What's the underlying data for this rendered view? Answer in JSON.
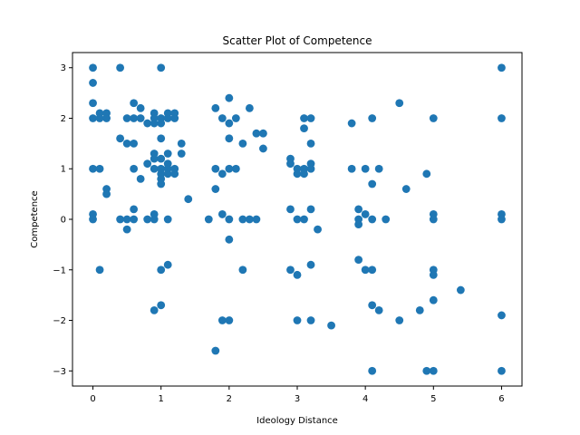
{
  "chart_data": {
    "type": "scatter",
    "title": "Scatter Plot of Competence",
    "xlabel": "Ideology Distance",
    "ylabel": "Competence",
    "xlim": [
      -0.3,
      6.3
    ],
    "ylim": [
      -3.3,
      3.3
    ],
    "xticks": [
      0,
      1,
      2,
      3,
      4,
      5,
      6
    ],
    "yticks": [
      -3,
      -2,
      -1,
      0,
      1,
      2,
      3
    ],
    "grid": false,
    "point_color": "#1f77b4",
    "points": [
      [
        0,
        3
      ],
      [
        0,
        2.7
      ],
      [
        0,
        2.3
      ],
      [
        0,
        2.0
      ],
      [
        0,
        1.0
      ],
      [
        0,
        0.1
      ],
      [
        0,
        0
      ],
      [
        0.1,
        2.1
      ],
      [
        0.1,
        2.0
      ],
      [
        0.1,
        1.0
      ],
      [
        0.1,
        -1.0
      ],
      [
        0.2,
        2.1
      ],
      [
        0.2,
        2.0
      ],
      [
        0.2,
        0.6
      ],
      [
        0.2,
        0.5
      ],
      [
        0.4,
        3
      ],
      [
        0.4,
        1.6
      ],
      [
        0.4,
        0
      ],
      [
        0.5,
        2.0
      ],
      [
        0.5,
        1.5
      ],
      [
        0.5,
        0
      ],
      [
        0.5,
        -0.2
      ],
      [
        0.6,
        2.3
      ],
      [
        0.6,
        2.0
      ],
      [
        0.6,
        1.5
      ],
      [
        0.6,
        1.0
      ],
      [
        0.6,
        0.2
      ],
      [
        0.6,
        0
      ],
      [
        0.7,
        2.2
      ],
      [
        0.7,
        2.0
      ],
      [
        0.7,
        0.8
      ],
      [
        0.8,
        1.9
      ],
      [
        0.8,
        1.1
      ],
      [
        0.8,
        0
      ],
      [
        0.9,
        2.1
      ],
      [
        0.9,
        2.0
      ],
      [
        0.9,
        1.9
      ],
      [
        0.9,
        1.3
      ],
      [
        0.9,
        1.2
      ],
      [
        0.9,
        1.0
      ],
      [
        0.9,
        0.1
      ],
      [
        0.9,
        0
      ],
      [
        0.9,
        -1.8
      ],
      [
        1.0,
        3
      ],
      [
        1.0,
        2.0
      ],
      [
        1.0,
        1.9
      ],
      [
        1.0,
        1.6
      ],
      [
        1.0,
        1.2
      ],
      [
        1.0,
        1.0
      ],
      [
        1.0,
        0.9
      ],
      [
        1.0,
        0.8
      ],
      [
        1.0,
        0.7
      ],
      [
        1.0,
        -1.0
      ],
      [
        1.0,
        -1.7
      ],
      [
        1.1,
        2.1
      ],
      [
        1.1,
        2.0
      ],
      [
        1.1,
        1.3
      ],
      [
        1.1,
        1.1
      ],
      [
        1.1,
        1.0
      ],
      [
        1.1,
        0.9
      ],
      [
        1.1,
        0
      ],
      [
        1.1,
        -0.9
      ],
      [
        1.2,
        2.1
      ],
      [
        1.2,
        2.0
      ],
      [
        1.2,
        1.0
      ],
      [
        1.2,
        0.9
      ],
      [
        1.3,
        1.5
      ],
      [
        1.3,
        1.3
      ],
      [
        1.4,
        0.4
      ],
      [
        1.7,
        0
      ],
      [
        1.8,
        2.2
      ],
      [
        1.8,
        1.0
      ],
      [
        1.8,
        0.6
      ],
      [
        1.8,
        -2.6
      ],
      [
        1.9,
        2.0
      ],
      [
        1.9,
        0.9
      ],
      [
        1.9,
        0.1
      ],
      [
        1.9,
        -2.0
      ],
      [
        2.0,
        2.4
      ],
      [
        2.0,
        1.9
      ],
      [
        2.0,
        1.6
      ],
      [
        2.0,
        1.0
      ],
      [
        2.0,
        0
      ],
      [
        2.0,
        -0.4
      ],
      [
        2.0,
        -2.0
      ],
      [
        2.1,
        2.0
      ],
      [
        2.1,
        1.0
      ],
      [
        2.2,
        1.5
      ],
      [
        2.2,
        0
      ],
      [
        2.2,
        -1.0
      ],
      [
        2.3,
        2.2
      ],
      [
        2.3,
        0
      ],
      [
        2.4,
        1.7
      ],
      [
        2.4,
        0
      ],
      [
        2.5,
        1.7
      ],
      [
        2.5,
        1.4
      ],
      [
        2.9,
        1.2
      ],
      [
        2.9,
        1.1
      ],
      [
        2.9,
        0.2
      ],
      [
        2.9,
        -1.0
      ],
      [
        3.0,
        1.0
      ],
      [
        3.0,
        0.9
      ],
      [
        3.0,
        0
      ],
      [
        3.0,
        -1.1
      ],
      [
        3.0,
        -2.0
      ],
      [
        3.1,
        2.0
      ],
      [
        3.1,
        1.8
      ],
      [
        3.1,
        1.0
      ],
      [
        3.1,
        0.9
      ],
      [
        3.1,
        0
      ],
      [
        3.2,
        2.0
      ],
      [
        3.2,
        1.5
      ],
      [
        3.2,
        1.1
      ],
      [
        3.2,
        1.0
      ],
      [
        3.2,
        0.2
      ],
      [
        3.2,
        -0.9
      ],
      [
        3.2,
        -2.0
      ],
      [
        3.3,
        -0.2
      ],
      [
        3.5,
        -2.1
      ],
      [
        3.8,
        1.9
      ],
      [
        3.8,
        1.0
      ],
      [
        3.9,
        0.2
      ],
      [
        3.9,
        0
      ],
      [
        3.9,
        -0.1
      ],
      [
        3.9,
        -0.8
      ],
      [
        4.0,
        1.0
      ],
      [
        4.0,
        0.1
      ],
      [
        4.0,
        -1.0
      ],
      [
        4.1,
        2.0
      ],
      [
        4.1,
        0.7
      ],
      [
        4.1,
        0
      ],
      [
        4.1,
        -1.0
      ],
      [
        4.1,
        -1.7
      ],
      [
        4.1,
        -3.0
      ],
      [
        4.2,
        1.0
      ],
      [
        4.2,
        -1.8
      ],
      [
        4.3,
        0
      ],
      [
        4.5,
        2.3
      ],
      [
        4.5,
        -2.0
      ],
      [
        4.6,
        0.6
      ],
      [
        4.8,
        -1.8
      ],
      [
        4.9,
        0.9
      ],
      [
        4.9,
        -3.0
      ],
      [
        5.0,
        2.0
      ],
      [
        5.0,
        0.1
      ],
      [
        5.0,
        0
      ],
      [
        5.0,
        -1.0
      ],
      [
        5.0,
        -1.1
      ],
      [
        5.0,
        -1.6
      ],
      [
        5.0,
        -3.0
      ],
      [
        5.4,
        -1.4
      ],
      [
        6.0,
        3
      ],
      [
        6.0,
        2.0
      ],
      [
        6.0,
        0.1
      ],
      [
        6.0,
        0
      ],
      [
        6.0,
        -1.9
      ],
      [
        6.0,
        -3.0
      ]
    ]
  }
}
